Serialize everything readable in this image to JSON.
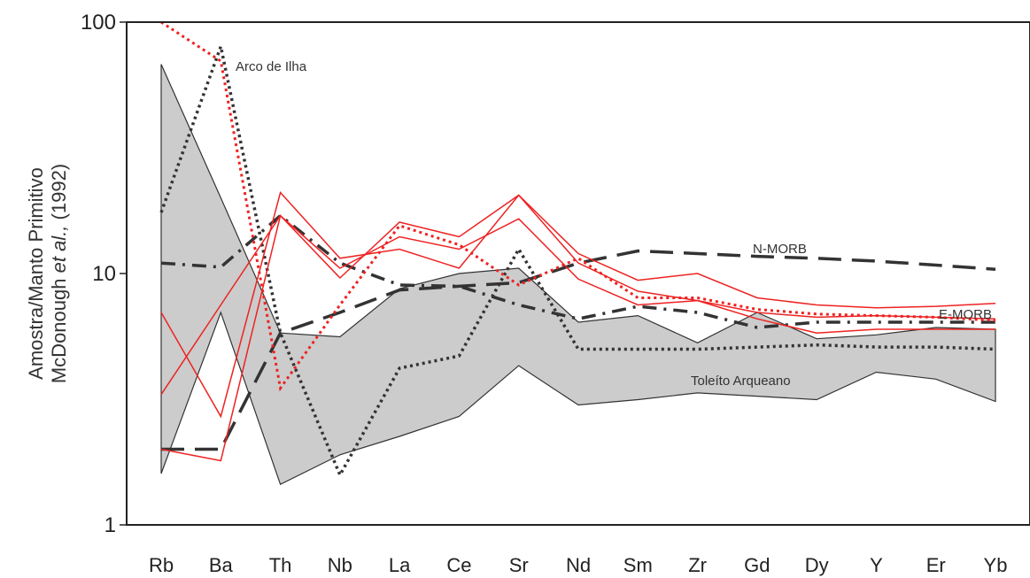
{
  "chart_data": {
    "type": "line",
    "yscale": "log",
    "ylim": [
      1,
      100
    ],
    "yticks": [
      "1",
      "10",
      "100"
    ],
    "ylabel_line1": "Amostra/Manto Primitivo",
    "ylabel_line2_prefix": "McDonough ",
    "ylabel_line2_italic": "et al.,",
    "ylabel_line2_suffix": " (1992)",
    "categories": [
      "Rb",
      "Ba",
      "Th",
      "Nb",
      "La",
      "Ce",
      "Sr",
      "Nd",
      "Sm",
      "Zr",
      "Gd",
      "Dy",
      "Y",
      "Er",
      "Yb"
    ],
    "field": {
      "name": "Toleíto Arqueano",
      "upper": [
        68,
        20,
        5.8,
        5.6,
        8.7,
        10.0,
        10.5,
        6.4,
        6.8,
        5.3,
        7.0,
        5.5,
        5.7,
        6.1,
        6.0
      ],
      "lower": [
        1.6,
        7.0,
        1.45,
        1.9,
        2.25,
        2.7,
        4.3,
        3.0,
        3.15,
        3.35,
        3.25,
        3.15,
        4.05,
        3.8,
        3.1
      ],
      "fill": "#cccccc",
      "stroke": "#333333"
    },
    "reference": [
      {
        "name": "N-MORB",
        "style": "dashed",
        "color": "#333333",
        "values": [
          2.0,
          2.0,
          5.8,
          7.0,
          8.6,
          8.9,
          9.2,
          11.0,
          12.3,
          12.0,
          11.7,
          11.5,
          11.2,
          10.8,
          10.4
        ]
      },
      {
        "name": "E-MORB",
        "style": "dashdot",
        "color": "#333333",
        "values": [
          11.0,
          10.6,
          17.0,
          11.0,
          9.0,
          8.9,
          7.5,
          6.6,
          7.4,
          7.0,
          6.1,
          6.4,
          6.4,
          6.4,
          6.4
        ]
      },
      {
        "name": "Arco de Ilha",
        "style": "dotted",
        "color": "#333333",
        "values": [
          17.5,
          80,
          5.8,
          1.58,
          4.2,
          4.7,
          12.5,
          5.0,
          5.0,
          5.0,
          5.1,
          5.2,
          5.1,
          5.1,
          5.0
        ]
      }
    ],
    "samples": [
      {
        "style": "solid",
        "color": "#ee2222",
        "values": [
          7.0,
          2.7,
          21.0,
          11.5,
          12.5,
          10.5,
          20.5,
          11.0,
          8.5,
          7.8,
          6.6,
          5.8,
          6.0,
          6.0,
          6.0
        ]
      },
      {
        "style": "solid",
        "color": "#ee2222",
        "values": [
          3.3,
          7.5,
          17.0,
          9.6,
          16.0,
          14.0,
          20.5,
          12.0,
          9.4,
          10.0,
          8.0,
          7.5,
          7.3,
          7.4,
          7.6
        ]
      },
      {
        "style": "solid",
        "color": "#ee2222",
        "values": [
          2.0,
          1.8,
          17.0,
          10.5,
          14.0,
          12.5,
          16.5,
          9.5,
          7.5,
          7.8,
          7.0,
          6.7,
          6.8,
          6.7,
          6.6
        ]
      },
      {
        "style": "dotted",
        "color": "#ee2222",
        "values": [
          100,
          70,
          3.5,
          7.5,
          15.5,
          13.0,
          9.0,
          11.5,
          8.0,
          8.0,
          7.2,
          6.9,
          6.8,
          6.7,
          6.5
        ]
      }
    ],
    "labels": {
      "arco": "Arco de Ilha",
      "nmorb": "N-MORB",
      "emorb": "E-MORB",
      "toleito": "Toleíto Arqueano"
    }
  }
}
